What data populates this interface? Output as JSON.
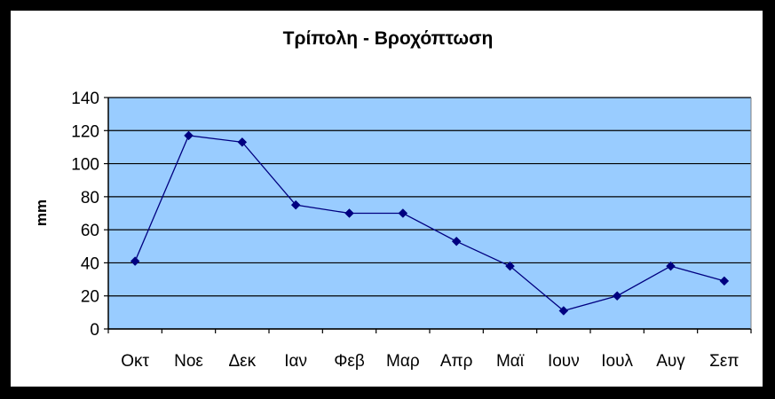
{
  "chart_data": {
    "type": "line",
    "title": "Τρίπολη - Βροχόπτωση",
    "xlabel": "",
    "ylabel": "mm",
    "ylim": [
      0,
      140
    ],
    "yticks": [
      "0",
      "20",
      "40",
      "60",
      "80",
      "100",
      "120",
      "140"
    ],
    "categories": [
      "Οκτ",
      "Νοε",
      "Δεκ",
      "Ιαν",
      "Φεβ",
      "Μαρ",
      "Απρ",
      "Μαϊ",
      "Ιουν",
      "Ιουλ",
      "Αυγ",
      "Σεπ"
    ],
    "series": [
      {
        "values": [
          41,
          117,
          113,
          75,
          70,
          70,
          53,
          38,
          11,
          20,
          38,
          29
        ]
      }
    ],
    "grid": true,
    "legend": "none",
    "colors": {
      "plot_area": "#99CCFF",
      "line": "#000080",
      "marker": "#000080",
      "gridline": "#000000"
    }
  }
}
